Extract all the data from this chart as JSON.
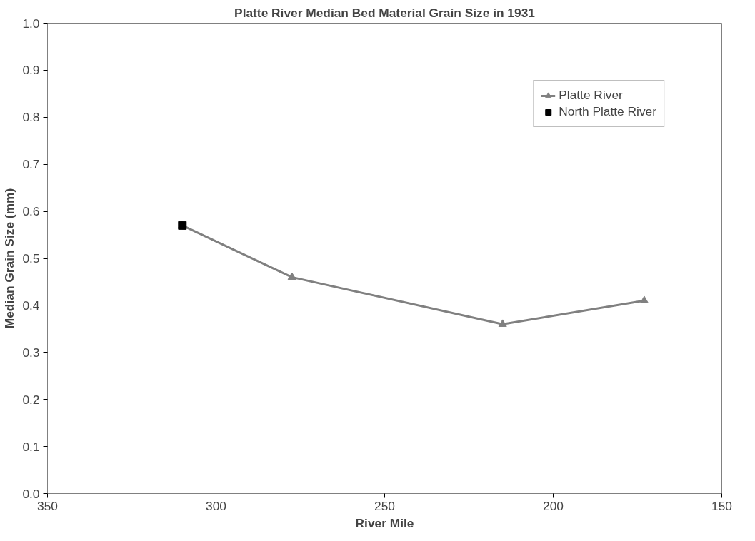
{
  "chart_data": {
    "type": "line",
    "title": "Platte River Median Bed Material Grain Size in 1931",
    "xlabel": "River Mile",
    "ylabel": "Median Grain Size (mm)",
    "xlim": [
      350,
      150
    ],
    "xticks": [
      350,
      300,
      250,
      200,
      150
    ],
    "ylim": [
      0,
      1.0
    ],
    "yticks": [
      {
        "value": 0,
        "label": "0.0"
      },
      0.1,
      0.2,
      0.3,
      0.4,
      0.5,
      0.6,
      0.7,
      0.8,
      0.9,
      {
        "value": 1.0,
        "label": "1.0"
      }
    ],
    "grid": false,
    "legend": "top right",
    "series": [
      {
        "name": "Platte River",
        "marker": "triangle",
        "color": "#808080",
        "x": [
          310,
          277.5,
          215,
          173
        ],
        "values": [
          0.57,
          0.46,
          0.36,
          0.41
        ]
      },
      {
        "name": "North Platte River",
        "type": "scatter",
        "marker": "square",
        "color": "#000000",
        "x": [
          310
        ],
        "values": [
          0.57
        ]
      }
    ]
  }
}
